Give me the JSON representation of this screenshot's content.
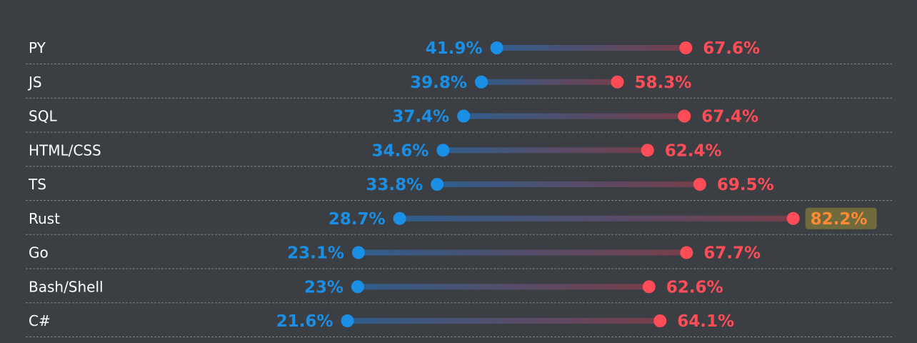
{
  "chart_data": {
    "type": "dumbbell",
    "title": "",
    "xlabel": "",
    "ylabel": "",
    "value_suffix": "%",
    "highlight_category": "Rust",
    "colors": {
      "left": "#1a8fe6",
      "right": "#ff4d57",
      "highlight_text": "#ff8a33",
      "highlight_box": "#6f6b3c",
      "separator": "#7c8187",
      "label": "#ffffff"
    },
    "rows": [
      {
        "category": "PY",
        "left": 41.9,
        "right": 67.6,
        "left_label": "41.9%",
        "right_label": "67.6%"
      },
      {
        "category": "JS",
        "left": 39.8,
        "right": 58.3,
        "left_label": "39.8%",
        "right_label": "58.3%"
      },
      {
        "category": "SQL",
        "left": 37.4,
        "right": 67.4,
        "left_label": "37.4%",
        "right_label": "67.4%"
      },
      {
        "category": "HTML/CSS",
        "left": 34.6,
        "right": 62.4,
        "left_label": "34.6%",
        "right_label": "62.4%"
      },
      {
        "category": "TS",
        "left": 33.8,
        "right": 69.5,
        "left_label": "33.8%",
        "right_label": "69.5%"
      },
      {
        "category": "Rust",
        "left": 28.7,
        "right": 82.2,
        "left_label": "28.7%",
        "right_label": "82.2%"
      },
      {
        "category": "Go",
        "left": 23.1,
        "right": 67.7,
        "left_label": "23.1%",
        "right_label": "67.7%"
      },
      {
        "category": "Bash/Shell",
        "left": 23,
        "right": 62.6,
        "left_label": "23%",
        "right_label": "62.6%"
      },
      {
        "category": "C#",
        "left": 21.6,
        "right": 64.1,
        "left_label": "21.6%",
        "right_label": "64.1%"
      }
    ]
  }
}
